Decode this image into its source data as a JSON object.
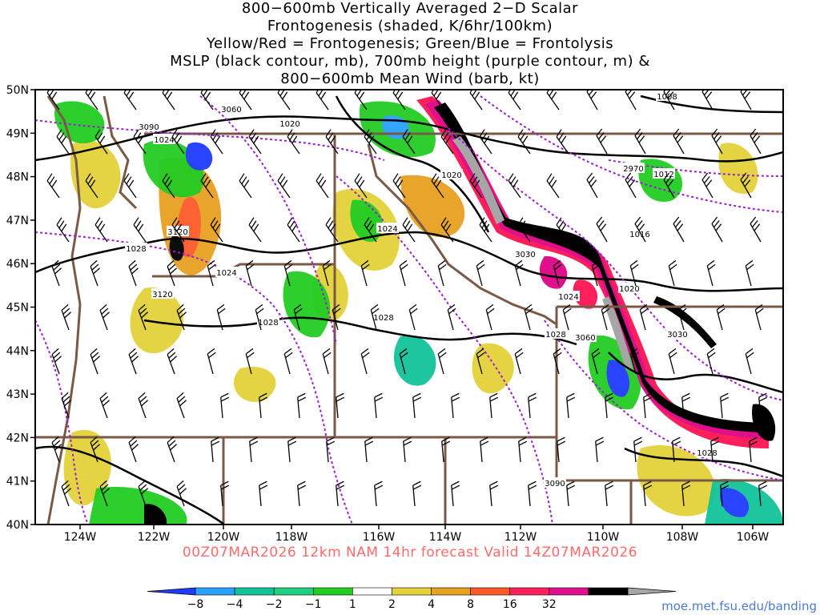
{
  "titles": [
    "800−600mb Vertically Averaged 2−D Scalar",
    "Frontogenesis (shaded, K/6hr/100km)",
    "Yellow/Red = Frontogenesis;  Green/Blue = Frontolysis",
    "MSLP (black contour, mb), 700mb height (purple contour, m) &",
    "800−600mb Mean Wind (barb, kt)"
  ],
  "footer": "00Z07MAR2026 12km NAM 14hr forecast Valid 14Z07MAR2026",
  "credit": "moe.met.fsu.edu/banding",
  "lat_labels": [
    "50N",
    "49N",
    "48N",
    "47N",
    "46N",
    "45N",
    "44N",
    "43N",
    "42N",
    "41N",
    "40N"
  ],
  "lon_labels": [
    "124W",
    "122W",
    "120W",
    "118W",
    "116W",
    "114W",
    "112W",
    "110W",
    "108W",
    "106W"
  ],
  "mslp_labels": [
    "1008",
    "1012",
    "1016",
    "1020",
    "1020",
    "1020",
    "1024",
    "1024",
    "1024",
    "1024",
    "1028",
    "1028",
    "1028",
    "1028",
    "1028"
  ],
  "height_labels": [
    "3060",
    "3090",
    "3120",
    "3120",
    "3030",
    "3030",
    "3060",
    "3090",
    "2970"
  ],
  "colorbar": {
    "ticks": [
      "−8",
      "−4",
      "−2",
      "−1",
      "1",
      "2",
      "4",
      "8",
      "16",
      "32"
    ],
    "colors": [
      "#1e3cff",
      "#2aa0ff",
      "#12c39a",
      "#20d080",
      "#22cc22",
      "#ffffff",
      "#e3d23a",
      "#e8a020",
      "#ff5a2a",
      "#ff1f5a",
      "#e0108c",
      "#000000",
      "#a6a6a6"
    ]
  },
  "colors": {
    "mslp": "#000000",
    "height": "#9b1fd0",
    "border": "#7a5a46"
  }
}
